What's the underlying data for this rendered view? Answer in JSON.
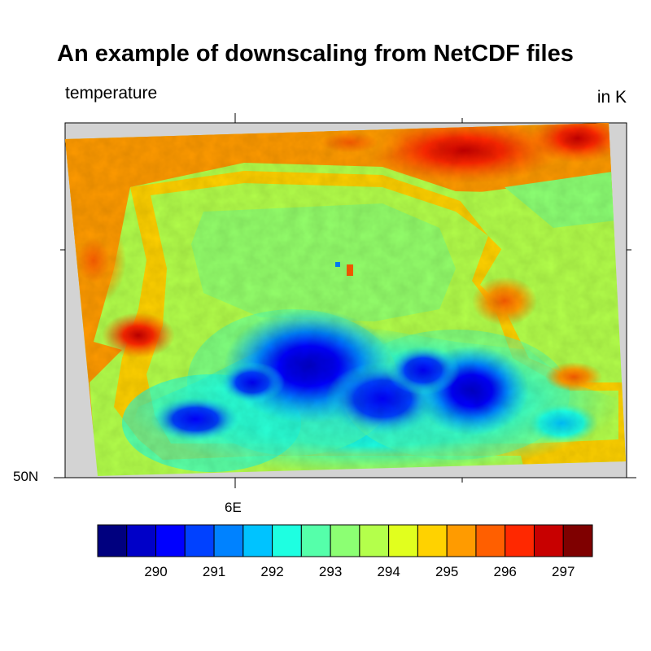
{
  "title": "An example of downscaling from NetCDF files",
  "variable_label": "temperature",
  "units_label": "in K",
  "axes": {
    "lat_tick_label": "50N",
    "lon_tick_label": "6E"
  },
  "colorbar": {
    "colors": [
      "#00007f",
      "#0000c8",
      "#0000ff",
      "#0041ff",
      "#0082ff",
      "#00c3ff",
      "#1effe1",
      "#55ffaa",
      "#8cff73",
      "#b4ff4b",
      "#e1ff1e",
      "#ffd200",
      "#ff9b00",
      "#ff5f00",
      "#ff2800",
      "#c80000",
      "#7f0000"
    ],
    "tick_labels": [
      "290",
      "291",
      "292",
      "293",
      "294",
      "295",
      "296",
      "297"
    ]
  },
  "colors": {
    "missing_value": "#d3d3d3",
    "frame": "#000000"
  }
}
